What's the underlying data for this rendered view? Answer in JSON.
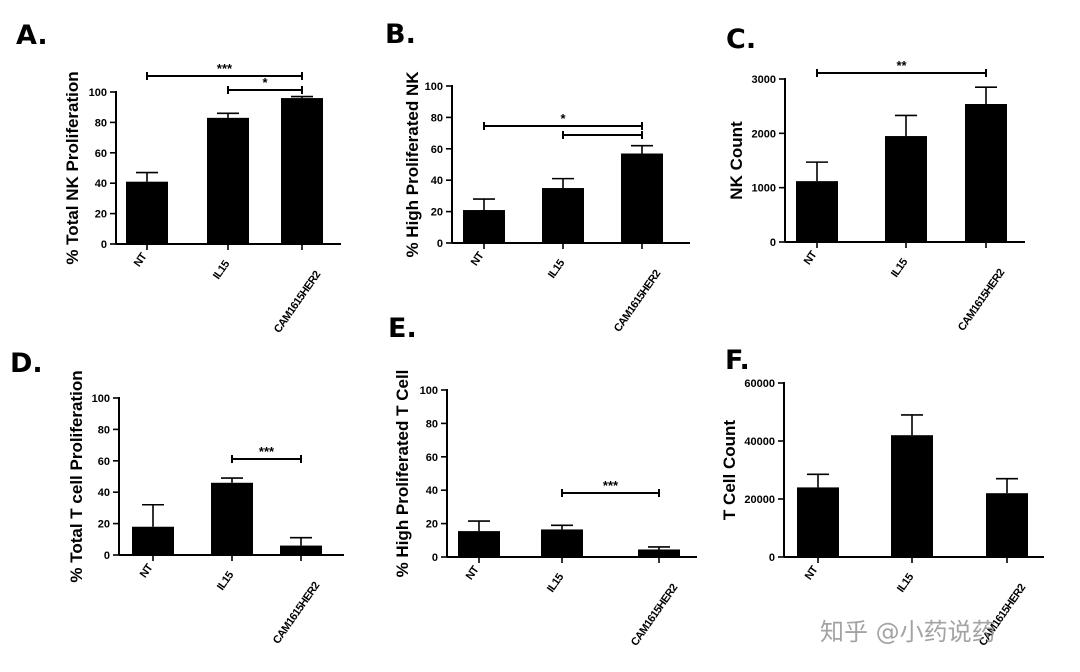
{
  "watermark": "知乎 @小药说药",
  "chart_data": [
    {
      "panel": "A.",
      "type": "bar",
      "ylabel": "% Total NK Proliferation",
      "categories": [
        "NT",
        "IL15",
        "CAM1615HER2"
      ],
      "values": [
        41,
        83,
        96
      ],
      "errors": [
        6,
        3,
        1
      ],
      "ylim": [
        0,
        100
      ],
      "yticks": [
        0,
        20,
        40,
        60,
        80,
        100
      ],
      "significance": [
        {
          "from": 0,
          "to": 2,
          "label": "***"
        },
        {
          "from": 1,
          "to": 2,
          "label": "*"
        }
      ]
    },
    {
      "panel": "B.",
      "type": "bar",
      "ylabel": "% High Proliferated NK",
      "categories": [
        "NT",
        "IL15",
        "CAM1615HER2"
      ],
      "values": [
        21,
        35,
        57
      ],
      "errors": [
        7,
        6,
        5
      ],
      "ylim": [
        0,
        100
      ],
      "yticks": [
        0,
        20,
        40,
        60,
        80,
        100
      ],
      "significance": [
        {
          "from": 0,
          "to": 2,
          "label": "*"
        },
        {
          "from": 1,
          "to": 2,
          "label": ""
        }
      ]
    },
    {
      "panel": "C.",
      "type": "bar",
      "ylabel": "NK Count",
      "categories": [
        "NT",
        "IL15",
        "CAM1615HER2"
      ],
      "values": [
        1120,
        1950,
        2540
      ],
      "errors": [
        350,
        380,
        310
      ],
      "ylim": [
        0,
        3000
      ],
      "yticks": [
        0,
        1000,
        2000,
        3000
      ],
      "significance": [
        {
          "from": 0,
          "to": 2,
          "label": "**"
        }
      ]
    },
    {
      "panel": "D.",
      "type": "bar",
      "ylabel": "% Total T cell Proliferation",
      "categories": [
        "NT",
        "IL15",
        "CAM1615HER2"
      ],
      "values": [
        18,
        46,
        6
      ],
      "errors": [
        14,
        3,
        5
      ],
      "ylim": [
        0,
        100
      ],
      "yticks": [
        0,
        20,
        40,
        60,
        80,
        100
      ],
      "significance": [
        {
          "from": 1,
          "to": 2,
          "label": "***"
        }
      ]
    },
    {
      "panel": "E.",
      "type": "bar",
      "ylabel": "% High Proliferated T Cell",
      "categories": [
        "NT",
        "IL15",
        "CAM1615HER2"
      ],
      "values": [
        15.5,
        16.5,
        4.5
      ],
      "errors": [
        6,
        2.5,
        1.5
      ],
      "ylim": [
        0,
        100
      ],
      "yticks": [
        0,
        20,
        40,
        60,
        80,
        100
      ],
      "significance": [
        {
          "from": 1,
          "to": 2,
          "label": "***"
        }
      ]
    },
    {
      "panel": "F.",
      "type": "bar",
      "ylabel": "T Cell Count",
      "categories": [
        "NT",
        "IL15",
        "CAM1615HER2"
      ],
      "values": [
        24000,
        42000,
        22000
      ],
      "errors": [
        4500,
        7000,
        5000
      ],
      "ylim": [
        0,
        60000
      ],
      "yticks": [
        0,
        20000,
        40000,
        60000
      ],
      "significance": []
    }
  ]
}
